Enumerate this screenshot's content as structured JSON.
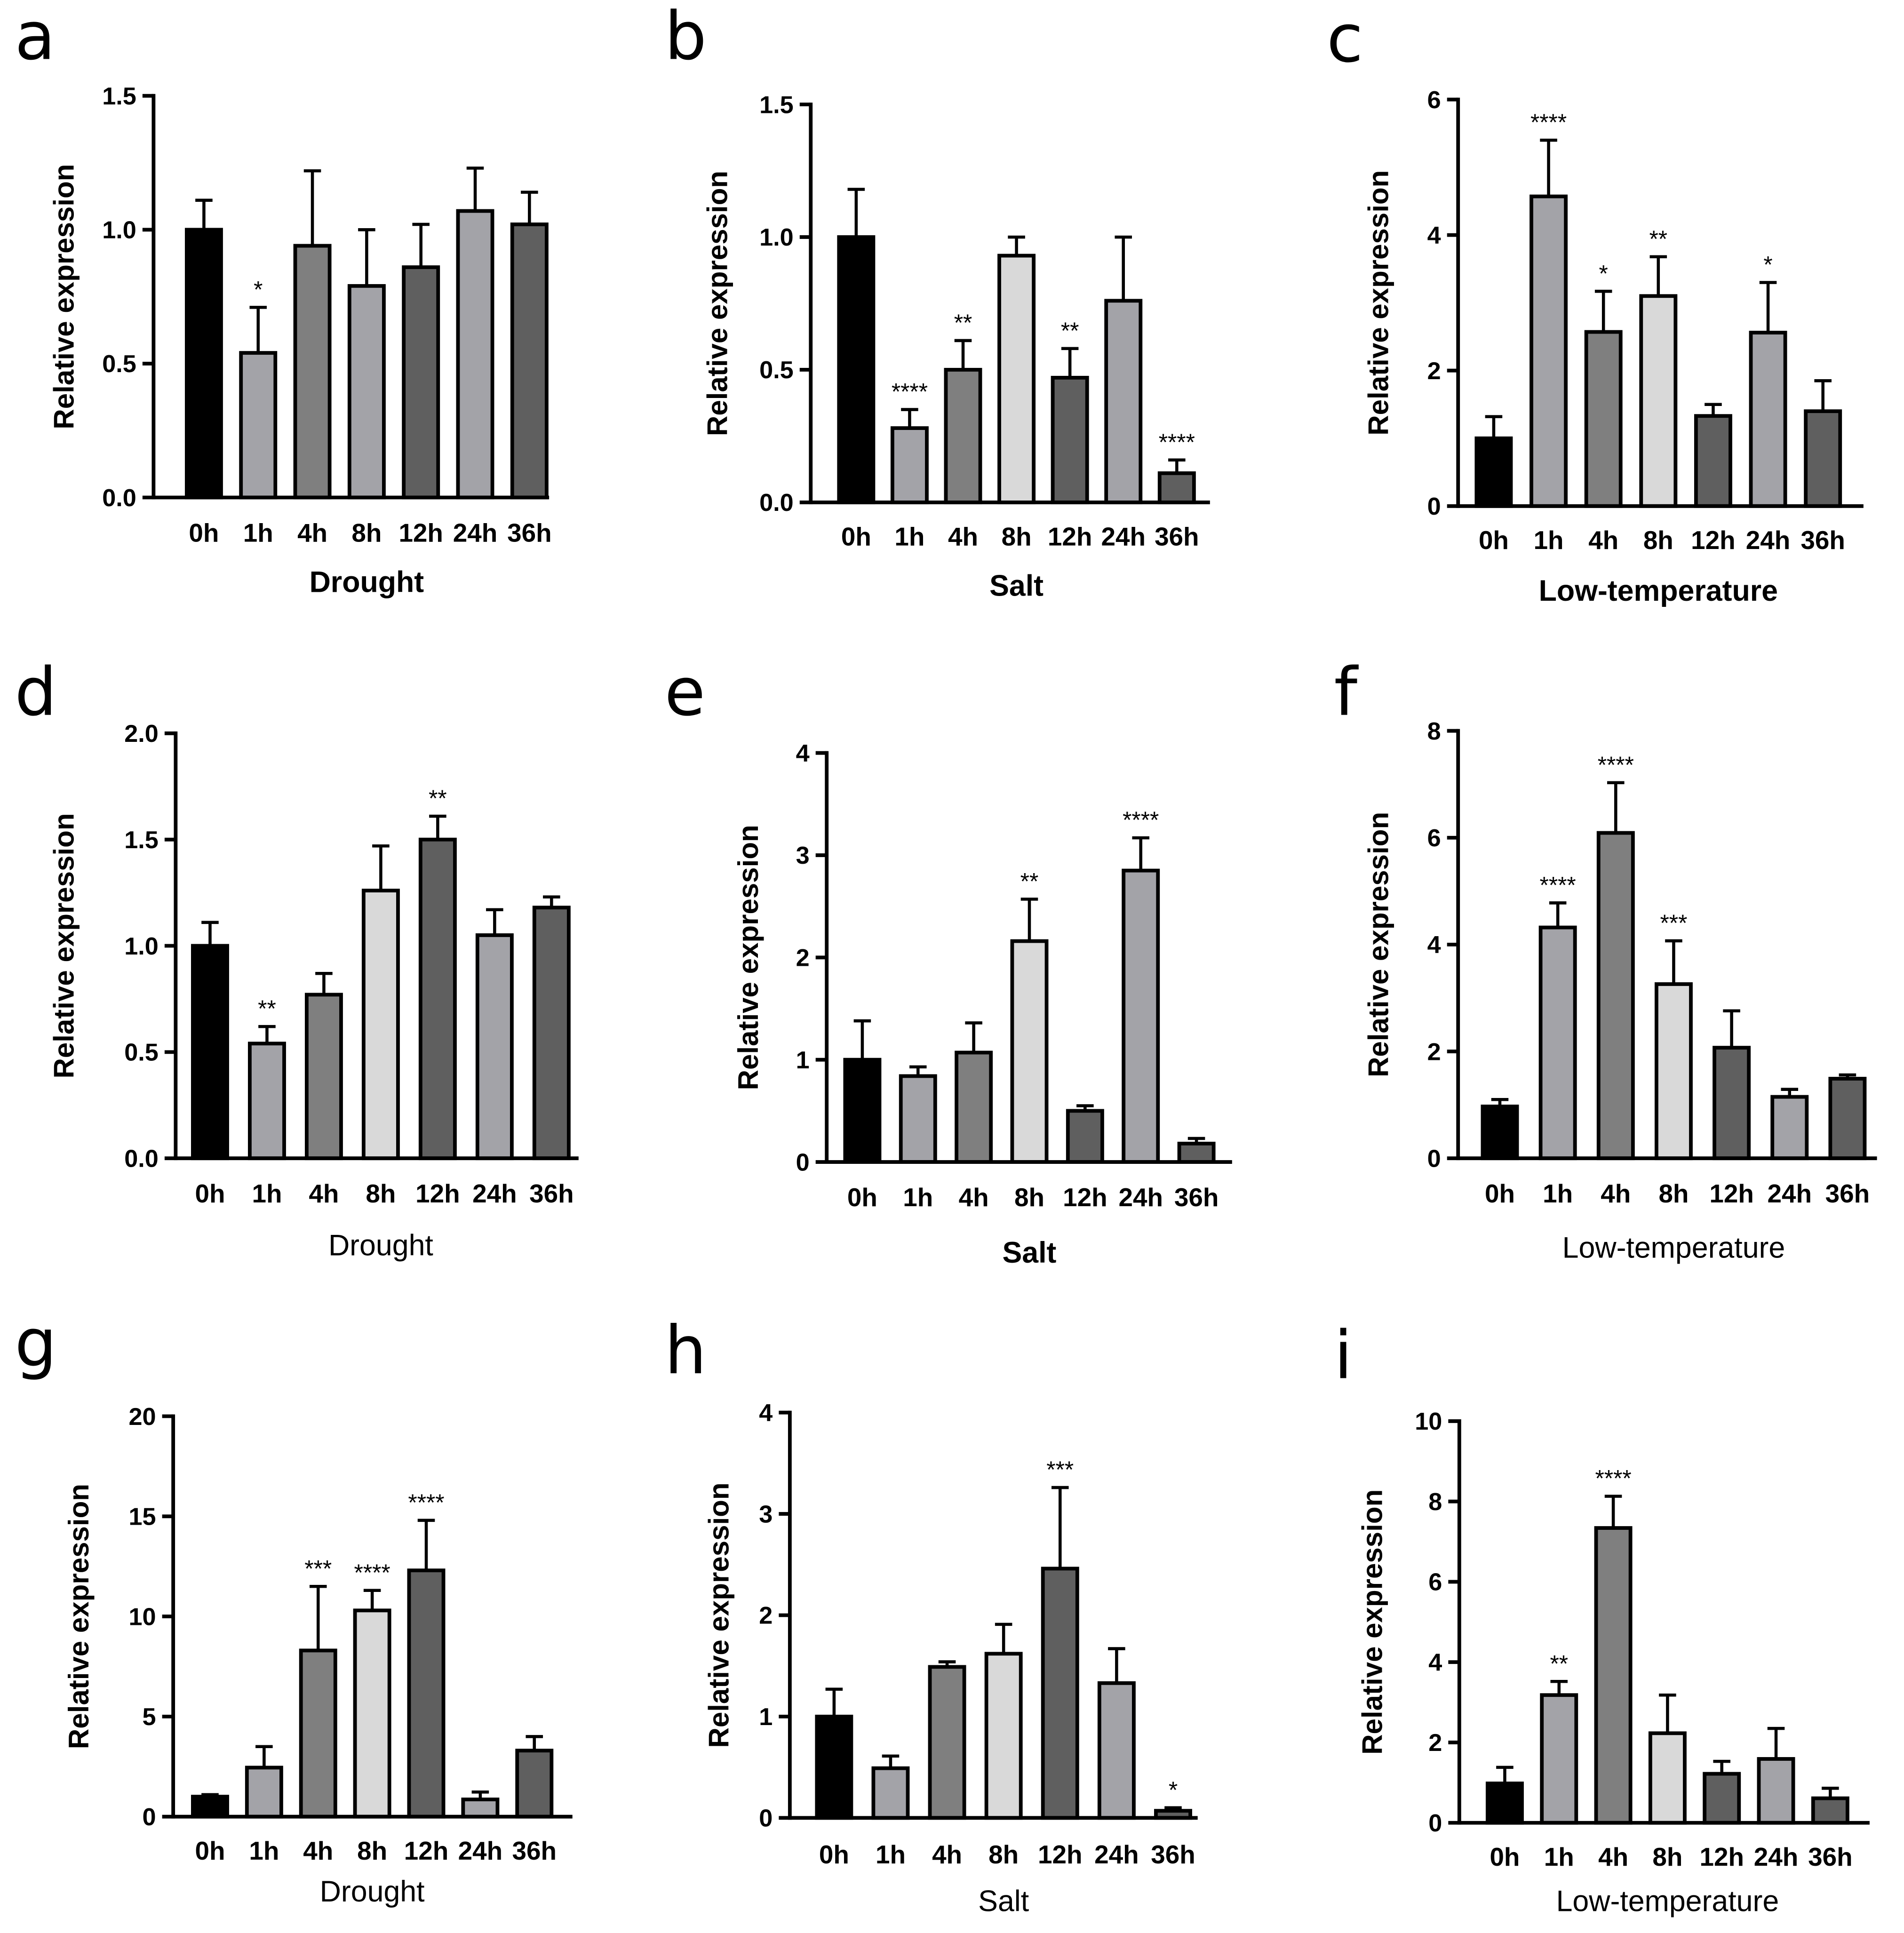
{
  "chart_data": [
    {
      "panel": "a",
      "type": "bar",
      "xlabel": "Drought",
      "ylabel": "Relative expression",
      "categories": [
        "0h",
        "1h",
        "4h",
        "8h",
        "12h",
        "24h",
        "36h"
      ],
      "values": [
        1.0,
        0.54,
        0.94,
        0.79,
        0.86,
        1.07,
        1.02
      ],
      "errors": [
        0.11,
        0.17,
        0.28,
        0.21,
        0.16,
        0.16,
        0.12
      ],
      "significance": [
        "",
        "*",
        "",
        "",
        "",
        "",
        ""
      ],
      "ylim": [
        0,
        1.5
      ],
      "yticks": [
        0,
        0.5,
        1.0,
        1.5
      ],
      "ytick_labels": [
        "0.0",
        "0.5",
        "1.0",
        "1.5"
      ],
      "bar_colors": [
        "#000000",
        "#a3a3a8",
        "#7f7f7f",
        "#a3a3a8",
        "#5f5f5f",
        "#a3a3a8",
        "#5f5f5f"
      ]
    },
    {
      "panel": "b",
      "type": "bar",
      "xlabel": "Salt",
      "ylabel": "Relative expression",
      "categories": [
        "0h",
        "1h",
        "4h",
        "8h",
        "12h",
        "24h",
        "36h"
      ],
      "values": [
        1.0,
        0.28,
        0.5,
        0.93,
        0.47,
        0.76,
        0.11
      ],
      "errors": [
        0.18,
        0.07,
        0.11,
        0.07,
        0.11,
        0.24,
        0.05
      ],
      "significance": [
        "",
        "****",
        "**",
        "",
        "**",
        "",
        "****"
      ],
      "ylim": [
        0,
        1.5
      ],
      "yticks": [
        0,
        0.5,
        1.0,
        1.5
      ],
      "ytick_labels": [
        "0.0",
        "0.5",
        "1.0",
        "1.5"
      ],
      "bar_colors": [
        "#000000",
        "#a3a3a8",
        "#7f7f7f",
        "#d9d9d9",
        "#5f5f5f",
        "#a3a3a8",
        "#5f5f5f"
      ]
    },
    {
      "panel": "c",
      "type": "bar",
      "xlabel": "Low-temperature",
      "ylabel": "Relative expression",
      "categories": [
        "0h",
        "1h",
        "4h",
        "8h",
        "12h",
        "24h",
        "36h"
      ],
      "values": [
        1.0,
        4.57,
        2.57,
        3.1,
        1.33,
        2.56,
        1.4
      ],
      "errors": [
        0.32,
        0.83,
        0.6,
        0.58,
        0.17,
        0.74,
        0.45
      ],
      "significance": [
        "",
        "****",
        "*",
        "**",
        "",
        "*",
        ""
      ],
      "ylim": [
        0,
        6
      ],
      "yticks": [
        0,
        2,
        4,
        6
      ],
      "ytick_labels": [
        "0",
        "2",
        "4",
        "6"
      ],
      "bar_colors": [
        "#000000",
        "#a3a3a8",
        "#7f7f7f",
        "#d9d9d9",
        "#5f5f5f",
        "#a3a3a8",
        "#5f5f5f"
      ]
    },
    {
      "panel": "d",
      "type": "bar",
      "xlabel": "Drought",
      "ylabel": "Relative expression",
      "categories": [
        "0h",
        "1h",
        "4h",
        "8h",
        "12h",
        "24h",
        "36h"
      ],
      "values": [
        1.0,
        0.54,
        0.77,
        1.26,
        1.5,
        1.05,
        1.18
      ],
      "errors": [
        0.11,
        0.08,
        0.1,
        0.21,
        0.11,
        0.12,
        0.05
      ],
      "significance": [
        "",
        "**",
        "",
        "",
        "**",
        "",
        ""
      ],
      "ylim": [
        0,
        2.0
      ],
      "yticks": [
        0,
        0.5,
        1.0,
        1.5,
        2.0
      ],
      "ytick_labels": [
        "0.0",
        "0.5",
        "1.0",
        "1.5",
        "2.0"
      ],
      "bar_colors": [
        "#000000",
        "#a3a3a8",
        "#7f7f7f",
        "#d9d9d9",
        "#5f5f5f",
        "#a3a3a8",
        "#5f5f5f"
      ]
    },
    {
      "panel": "e",
      "type": "bar",
      "xlabel": "Salt",
      "ylabel": "Relative expression",
      "categories": [
        "0h",
        "1h",
        "4h",
        "8h",
        "12h",
        "24h",
        "36h"
      ],
      "values": [
        1.0,
        0.84,
        1.07,
        2.16,
        0.5,
        2.85,
        0.18
      ],
      "errors": [
        0.38,
        0.09,
        0.29,
        0.41,
        0.05,
        0.32,
        0.05
      ],
      "significance": [
        "",
        "",
        "",
        "**",
        "",
        "****",
        ""
      ],
      "ylim": [
        0,
        4
      ],
      "yticks": [
        0,
        1,
        2,
        3,
        4
      ],
      "ytick_labels": [
        "0",
        "1",
        "2",
        "3",
        "4"
      ],
      "bar_colors": [
        "#000000",
        "#a3a3a8",
        "#7f7f7f",
        "#d9d9d9",
        "#5f5f5f",
        "#a3a3a8",
        "#5f5f5f"
      ]
    },
    {
      "panel": "f",
      "type": "bar",
      "xlabel": "Low-temperature",
      "ylabel": "Relative expression",
      "categories": [
        "0h",
        "1h",
        "4h",
        "8h",
        "12h",
        "24h",
        "36h"
      ],
      "values": [
        0.97,
        4.32,
        6.09,
        3.26,
        2.07,
        1.15,
        1.49
      ],
      "errors": [
        0.13,
        0.46,
        0.94,
        0.81,
        0.69,
        0.14,
        0.07
      ],
      "significance": [
        "",
        "****",
        "****",
        "***",
        "",
        "",
        ""
      ],
      "ylim": [
        0,
        8
      ],
      "yticks": [
        0,
        2,
        4,
        6,
        8
      ],
      "ytick_labels": [
        "0",
        "2",
        "4",
        "6",
        "8"
      ],
      "bar_colors": [
        "#000000",
        "#a3a3a8",
        "#7f7f7f",
        "#d9d9d9",
        "#5f5f5f",
        "#a3a3a8",
        "#5f5f5f"
      ]
    },
    {
      "panel": "g",
      "type": "bar",
      "xlabel": "Drought",
      "ylabel": "Relative expression",
      "categories": [
        "0h",
        "1h",
        "4h",
        "8h",
        "12h",
        "24h",
        "36h"
      ],
      "values": [
        1.0,
        2.45,
        8.3,
        10.3,
        12.3,
        0.86,
        3.3
      ],
      "errors": [
        0.1,
        1.05,
        3.2,
        1.0,
        2.5,
        0.37,
        0.7
      ],
      "significance": [
        "",
        "",
        "***",
        "****",
        "****",
        "",
        ""
      ],
      "ylim": [
        0,
        20
      ],
      "yticks": [
        0,
        5,
        10,
        15,
        20
      ],
      "ytick_labels": [
        "0",
        "5",
        "10",
        "15",
        "20"
      ],
      "bar_colors": [
        "#000000",
        "#a3a3a8",
        "#7f7f7f",
        "#d9d9d9",
        "#5f5f5f",
        "#a3a3a8",
        "#5f5f5f"
      ]
    },
    {
      "panel": "h",
      "type": "bar",
      "xlabel": "Salt",
      "ylabel": "Relative expression",
      "categories": [
        "0h",
        "1h",
        "4h",
        "8h",
        "12h",
        "24h",
        "36h"
      ],
      "values": [
        1.0,
        0.49,
        1.49,
        1.62,
        2.46,
        1.33,
        0.07
      ],
      "errors": [
        0.27,
        0.12,
        0.05,
        0.29,
        0.8,
        0.34,
        0.03
      ],
      "significance": [
        "",
        "",
        "",
        "",
        "***",
        "",
        "*"
      ],
      "ylim": [
        0,
        4
      ],
      "yticks": [
        0,
        1,
        2,
        3,
        4
      ],
      "ytick_labels": [
        "0",
        "1",
        "2",
        "3",
        "4"
      ],
      "bar_colors": [
        "#000000",
        "#a3a3a8",
        "#7f7f7f",
        "#d9d9d9",
        "#5f5f5f",
        "#a3a3a8",
        "#5f5f5f"
      ]
    },
    {
      "panel": "i",
      "type": "bar",
      "xlabel": "Low-temperature",
      "ylabel": "Relative expression",
      "categories": [
        "0h",
        "1h",
        "4h",
        "8h",
        "12h",
        "24h",
        "36h"
      ],
      "values": [
        0.98,
        3.18,
        7.34,
        2.23,
        1.22,
        1.59,
        0.61
      ],
      "errors": [
        0.4,
        0.34,
        0.79,
        0.95,
        0.31,
        0.76,
        0.25
      ],
      "significance": [
        "",
        "**",
        "****",
        "",
        "",
        "",
        ""
      ],
      "ylim": [
        0,
        10
      ],
      "yticks": [
        0,
        2,
        4,
        6,
        8,
        10
      ],
      "ytick_labels": [
        "0",
        "2",
        "4",
        "6",
        "8",
        "10"
      ],
      "bar_colors": [
        "#000000",
        "#a3a3a8",
        "#7f7f7f",
        "#d9d9d9",
        "#5f5f5f",
        "#a3a3a8",
        "#5f5f5f"
      ]
    }
  ]
}
